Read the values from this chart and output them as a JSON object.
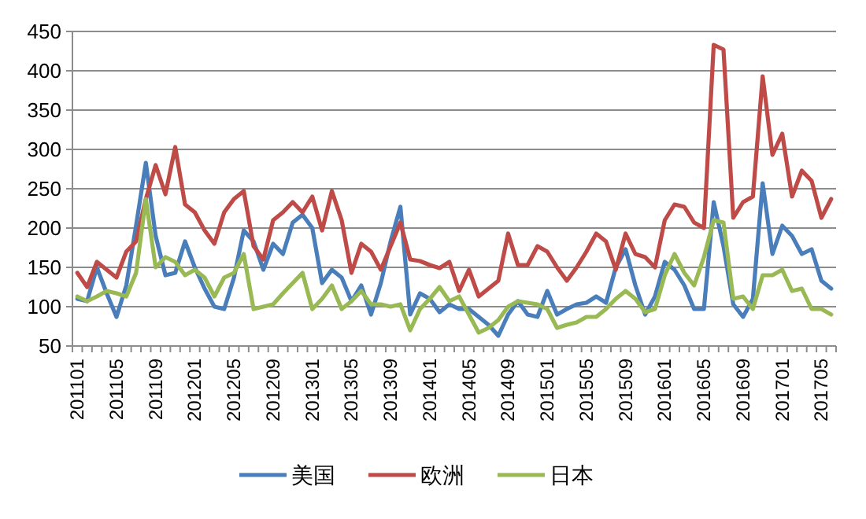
{
  "chart_data": {
    "type": "line",
    "categories": [
      "201101",
      null,
      null,
      null,
      "201105",
      null,
      null,
      null,
      "201109",
      null,
      null,
      null,
      "201201",
      null,
      null,
      null,
      "201205",
      null,
      null,
      null,
      "201209",
      null,
      null,
      null,
      "201301",
      null,
      null,
      null,
      "201305",
      null,
      null,
      null,
      "201309",
      null,
      null,
      null,
      "201401",
      null,
      null,
      null,
      "201405",
      null,
      null,
      null,
      "201409",
      null,
      null,
      null,
      "201501",
      null,
      null,
      null,
      "201505",
      null,
      null,
      null,
      "201509",
      null,
      null,
      null,
      "201601",
      null,
      null,
      null,
      "201605",
      null,
      null,
      null,
      "201609",
      null,
      null,
      null,
      "201701",
      null,
      null,
      null,
      "201705",
      null
    ],
    "series": [
      {
        "name": "美国",
        "color": "#4a7ebb",
        "values": [
          110,
          107,
          150,
          117,
          87,
          127,
          203,
          283,
          190,
          140,
          143,
          183,
          150,
          123,
          100,
          97,
          137,
          197,
          183,
          147,
          180,
          167,
          207,
          217,
          200,
          130,
          147,
          137,
          107,
          127,
          90,
          130,
          183,
          227,
          90,
          117,
          110,
          93,
          103,
          97,
          97,
          87,
          77,
          63,
          90,
          107,
          90,
          87,
          120,
          90,
          97,
          103,
          105,
          113,
          105,
          150,
          173,
          127,
          90,
          113,
          157,
          147,
          127,
          97,
          97,
          233,
          177,
          103,
          87,
          110,
          257,
          167,
          203,
          190,
          167,
          173,
          133,
          123
        ]
      },
      {
        "name": "欧洲",
        "color": "#be4b48",
        "values": [
          143,
          125,
          157,
          147,
          137,
          170,
          183,
          237,
          280,
          243,
          303,
          230,
          220,
          197,
          180,
          220,
          237,
          247,
          177,
          160,
          210,
          220,
          233,
          220,
          240,
          197,
          247,
          210,
          143,
          180,
          170,
          147,
          177,
          207,
          160,
          158,
          153,
          149,
          157,
          120,
          147,
          113,
          123,
          133,
          193,
          153,
          153,
          177,
          170,
          150,
          133,
          150,
          170,
          193,
          183,
          147,
          193,
          167,
          163,
          150,
          210,
          230,
          227,
          207,
          200,
          433,
          427,
          213,
          233,
          240,
          393,
          293,
          320,
          240,
          273,
          260,
          213,
          237
        ]
      },
      {
        "name": "日本",
        "color": "#98b954",
        "values": [
          113,
          107,
          113,
          120,
          117,
          113,
          143,
          237,
          150,
          163,
          157,
          140,
          147,
          137,
          113,
          137,
          143,
          167,
          97,
          100,
          103,
          117,
          130,
          143,
          97,
          110,
          127,
          97,
          107,
          120,
          103,
          103,
          100,
          103,
          70,
          97,
          110,
          125,
          107,
          113,
          90,
          67,
          73,
          83,
          100,
          107,
          105,
          103,
          97,
          73,
          77,
          80,
          87,
          87,
          97,
          110,
          120,
          110,
          93,
          97,
          140,
          167,
          143,
          127,
          163,
          210,
          207,
          110,
          113,
          97,
          140,
          140,
          147,
          120,
          123,
          97,
          97,
          90
        ]
      }
    ],
    "ylim": [
      50,
      450
    ],
    "yticks": [
      50,
      100,
      150,
      200,
      250,
      300,
      350,
      400,
      450
    ],
    "grid": "y",
    "legend": "bottom"
  }
}
